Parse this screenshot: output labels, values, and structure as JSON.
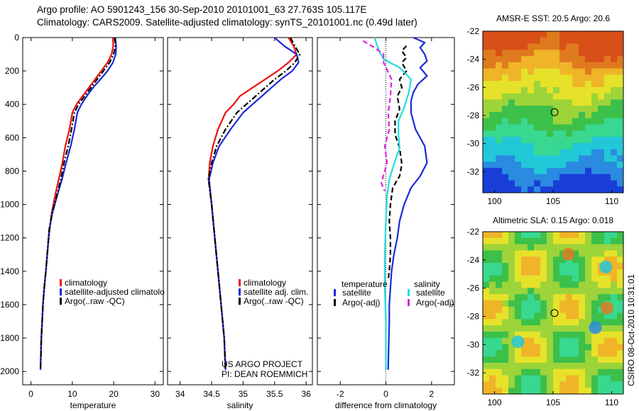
{
  "header": {
    "line1": "Argo profile: AO 5901243_156 30-Sep-2010 20101001_63 27.763S 105.117E",
    "line2": "Climatology: CARS2009. Satellite-adjusted climatology: synTS_20101001.nc (0.49d later)"
  },
  "side_label": "CSIRO 08-Oct-2010 10:31:01",
  "colors": {
    "climatology": "#ee1111",
    "satellite": "#1a2ad6",
    "argo": "#000000",
    "satellite_sal": "#22dde0",
    "argo_sal": "#e020e0"
  },
  "chart_data": [
    {
      "type": "line",
      "xlabel": "temperature",
      "xlim": [
        -2,
        32
      ],
      "xticks": [
        "0",
        "10",
        "20",
        "30"
      ],
      "xtick_values": [
        0,
        10,
        20,
        30
      ],
      "ylim": [
        2080,
        0
      ],
      "yticks": [
        "0",
        "200",
        "400",
        "600",
        "800",
        "1000",
        "1200",
        "1400",
        "1600",
        "1800",
        "2000"
      ],
      "ytick_values": [
        0,
        200,
        400,
        600,
        800,
        1000,
        1200,
        1400,
        1600,
        1800,
        2000
      ],
      "legend": [
        "climatology",
        "satellite-adjusted climatolo",
        "Argo(..raw -QC)"
      ],
      "legend_position": "lower-center",
      "series": [
        {
          "name": "climatology",
          "color": "#ee1111",
          "style": "solid",
          "x": [
            19.8,
            19.9,
            19.5,
            18.5,
            17,
            15.5,
            14,
            12.5,
            11,
            10,
            9.3,
            8.3,
            7.6,
            6.7,
            5.8,
            5.0,
            4.5,
            4.1,
            3.6,
            3.2,
            2.9,
            2.7,
            2.5,
            2.4,
            2.3
          ],
          "y": [
            0,
            50,
            100,
            150,
            200,
            250,
            300,
            350,
            400,
            450,
            550,
            650,
            750,
            850,
            950,
            1050,
            1150,
            1250,
            1400,
            1500,
            1600,
            1700,
            1800,
            1900,
            1990
          ]
        },
        {
          "name": "satellite-adjusted climatolo",
          "color": "#1a2ad6",
          "style": "solid",
          "x": [
            20.4,
            20.6,
            20.5,
            19.8,
            18.5,
            16.8,
            15,
            13.5,
            12.2,
            11.2,
            10.5,
            9.6,
            8.5,
            7.5,
            6.3,
            5.2,
            4.4,
            4.1,
            3.6,
            3.2,
            2.9,
            2.7,
            2.5,
            2.4,
            2.3
          ],
          "y": [
            0,
            50,
            100,
            150,
            200,
            250,
            300,
            350,
            400,
            450,
            550,
            650,
            750,
            850,
            950,
            1050,
            1150,
            1250,
            1400,
            1500,
            1600,
            1700,
            1800,
            1900,
            1990
          ]
        },
        {
          "name": "Argo(..raw -QC)",
          "color": "#000000",
          "style": "dashdot",
          "x": [
            20.3,
            20.4,
            20.0,
            19.0,
            17.5,
            16.0,
            14.5,
            13.0,
            11.5,
            10.5,
            9.8,
            9.0,
            8.0,
            7.2,
            6.2,
            5.1,
            4.4,
            4.1,
            3.6,
            3.2,
            2.9,
            2.7,
            2.5,
            2.4,
            2.3
          ],
          "y": [
            0,
            50,
            100,
            150,
            200,
            250,
            300,
            350,
            400,
            450,
            550,
            650,
            750,
            850,
            950,
            1050,
            1150,
            1250,
            1400,
            1500,
            1600,
            1700,
            1800,
            1900,
            1990
          ]
        }
      ]
    },
    {
      "type": "line",
      "xlabel": "salinity",
      "xlim": [
        33.8,
        36.1
      ],
      "xticks": [
        "34",
        "34.5",
        "35",
        "35.5",
        "36"
      ],
      "xtick_values": [
        34,
        34.5,
        35,
        35.5,
        36
      ],
      "ylim": [
        2080,
        0
      ],
      "legend": [
        "climatology",
        "satellite adj. clim.",
        "Argo(..raw -QC)"
      ],
      "legend_position": "lower-center",
      "annotations": [
        "US ARGO PROJECT",
        "PI: DEAN ROEMMICH"
      ],
      "series": [
        {
          "name": "climatology",
          "color": "#ee1111",
          "style": "solid",
          "x": [
            35.72,
            35.8,
            35.85,
            35.72,
            35.55,
            35.35,
            35.15,
            34.95,
            34.85,
            34.72,
            34.6,
            34.52,
            34.47,
            34.45,
            34.5,
            34.55,
            34.6,
            34.65,
            34.7,
            34.72
          ],
          "y": [
            0,
            50,
            100,
            150,
            200,
            250,
            300,
            350,
            400,
            450,
            550,
            650,
            750,
            850,
            1000,
            1200,
            1400,
            1600,
            1800,
            1990
          ]
        },
        {
          "name": "satellite adj. clim.",
          "color": "#1a2ad6",
          "style": "solid",
          "x": [
            35.5,
            35.65,
            35.85,
            35.88,
            35.78,
            35.6,
            35.45,
            35.3,
            35.15,
            35.0,
            34.8,
            34.62,
            34.52,
            34.46,
            34.5,
            34.55,
            34.6,
            34.65,
            34.7,
            34.72
          ],
          "y": [
            0,
            50,
            100,
            150,
            200,
            250,
            300,
            350,
            400,
            450,
            550,
            650,
            750,
            850,
            1000,
            1200,
            1400,
            1600,
            1800,
            1990
          ]
        },
        {
          "name": "Argo(..raw -QC)",
          "color": "#000000",
          "style": "dashdot",
          "x": [
            35.75,
            35.82,
            35.9,
            35.82,
            35.68,
            35.5,
            35.35,
            35.2,
            35.05,
            34.9,
            34.72,
            34.58,
            34.5,
            34.45,
            34.5,
            34.55,
            34.6,
            34.65,
            34.7,
            34.72
          ],
          "y": [
            0,
            50,
            100,
            150,
            200,
            250,
            300,
            350,
            400,
            450,
            550,
            650,
            750,
            850,
            1000,
            1200,
            1400,
            1600,
            1800,
            1990
          ]
        }
      ]
    },
    {
      "type": "line",
      "xlabel": "difference from climatology",
      "xlim": [
        -3,
        3
      ],
      "xticks": [
        "-2",
        "0",
        "2"
      ],
      "xtick_values": [
        -2,
        0,
        2
      ],
      "ylim": [
        2080,
        0
      ],
      "zero_line": true,
      "legend_titles": [
        "temperature",
        "salinity"
      ],
      "legend": [
        "satellite",
        "Argo(-adj)",
        "satellite",
        "Argo(-adj)"
      ],
      "legend_position": "lower-center",
      "series": [
        {
          "name": "satellite",
          "group": "temperature",
          "color": "#1a2ad6",
          "style": "solid",
          "x": [
            1.2,
            1.7,
            1.5,
            1.7,
            1.8,
            1.5,
            1.8,
            1.4,
            1.2,
            1.1,
            1.1,
            1.3,
            1.7,
            1.8,
            1.5,
            1.1,
            0.8,
            0.6,
            0.5,
            0.35,
            0.25,
            0.2,
            0.15,
            0.15,
            0.12,
            0.1
          ],
          "y": [
            0,
            30,
            60,
            100,
            140,
            180,
            230,
            280,
            330,
            380,
            450,
            550,
            650,
            750,
            830,
            900,
            1000,
            1100,
            1200,
            1300,
            1400,
            1500,
            1600,
            1700,
            1850,
            1990
          ]
        },
        {
          "name": "Argo(-adj)",
          "group": "temperature",
          "color": "#000000",
          "style": "dashed",
          "x": [
            0.9,
            0.7,
            0.9,
            0.7,
            0.9,
            0.6,
            0.7,
            0.5,
            0.6,
            0.4,
            0.4,
            0.6,
            0.7,
            0.6,
            0.3,
            0.2,
            0.15,
            0.2,
            0.2,
            0.15,
            0.1
          ],
          "y": [
            50,
            80,
            120,
            150,
            200,
            250,
            300,
            350,
            430,
            500,
            580,
            660,
            760,
            830,
            900,
            1000,
            1100,
            1200,
            1300,
            1400,
            1450
          ]
        },
        {
          "name": "satellite",
          "group": "salinity",
          "color": "#22dde0",
          "style": "solid",
          "x": [
            -0.5,
            -0.3,
            -0.1,
            0.6,
            1.1,
            1.0,
            0.8,
            0.55,
            0.55,
            0.6,
            0.35,
            0.15,
            0.05,
            0.0,
            -0.05,
            -0.05,
            0.0,
            0.0,
            0.0
          ],
          "y": [
            0,
            80,
            130,
            180,
            250,
            330,
            420,
            500,
            580,
            660,
            760,
            850,
            950,
            1100,
            1300,
            1500,
            1700,
            1850,
            1990
          ]
        },
        {
          "name": "Argo(-adj)",
          "group": "salinity",
          "color": "#e020e0",
          "style": "dashed",
          "x": [
            -1.0,
            -0.5,
            -0.1,
            -0.1,
            0.25,
            0.2,
            0.1,
            0.15,
            -0.05,
            0.05,
            -0.05,
            -0.2,
            -0.05
          ],
          "y": [
            20,
            60,
            100,
            150,
            250,
            350,
            450,
            550,
            650,
            750,
            800,
            870,
            920
          ]
        }
      ]
    },
    {
      "type": "heatmap",
      "title": "AMSR-E SST: 20.5 Argo: 20.6",
      "xlim": [
        99,
        111
      ],
      "ylim": [
        -33.5,
        -22
      ],
      "xticks": [
        "100",
        "105",
        "110"
      ],
      "xtick_values": [
        100,
        105,
        110
      ],
      "yticks": [
        "-22",
        "-24",
        "-26",
        "-28",
        "-30",
        "-32"
      ],
      "ytick_values": [
        -22,
        -24,
        -26,
        -28,
        -30,
        -32
      ],
      "marker": {
        "lon": 105.117,
        "lat": -27.763
      },
      "field": "sea surface temperature: warm (orange) in the north, green near -28 to -30, cyan/blue in the south"
    },
    {
      "type": "heatmap",
      "title": "Altimetric SLA: 0.15 Argo: 0.018",
      "xlim": [
        99,
        111
      ],
      "ylim": [
        -33.5,
        -22
      ],
      "xticks": [
        "100",
        "105",
        "110"
      ],
      "xtick_values": [
        100,
        105,
        110
      ],
      "yticks": [
        "-22",
        "-24",
        "-26",
        "-28",
        "-30",
        "-32"
      ],
      "ytick_values": [
        -22,
        -24,
        -26,
        -28,
        -30,
        -32
      ],
      "marker": {
        "lon": 105.117,
        "lat": -27.763
      },
      "field": "sea level anomaly: mostly yellow-green with scattered orange highs and blue/green lows"
    }
  ]
}
